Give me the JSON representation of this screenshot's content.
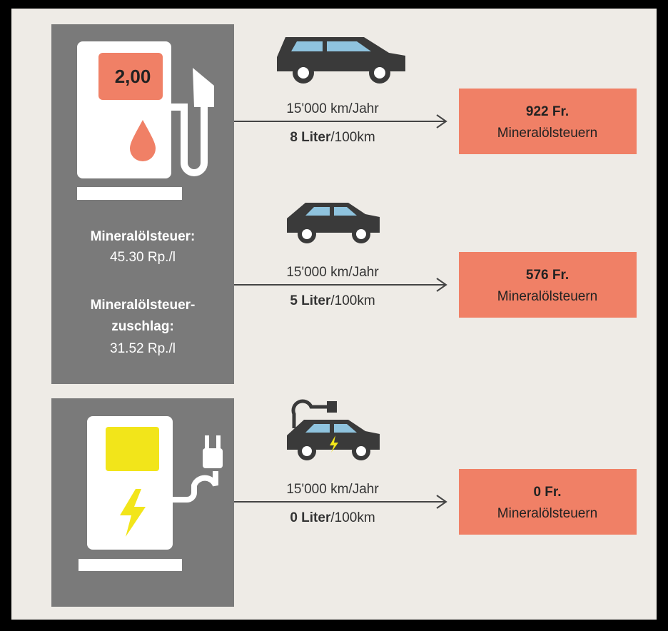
{
  "fuel_panel": {
    "price": "2,00",
    "tax_label": "Mineralölsteuer:",
    "tax_value": "45.30 Rp./l",
    "surcharge_label": [
      "Mineralölsteuer-",
      "zuschlag:"
    ],
    "surcharge_value": "31.52 Rp./l"
  },
  "rows": [
    {
      "distance": "15'000 km/Jahr",
      "consumption": "8 Liter",
      "unit": "/100km",
      "amount": "922 Fr.",
      "result_label": "Mineralölsteuern"
    },
    {
      "distance": "15'000 km/Jahr",
      "consumption": "5 Liter",
      "unit": "/100km",
      "amount": "576 Fr.",
      "result_label": "Mineralölsteuern"
    },
    {
      "distance": "15'000 km/Jahr",
      "consumption": "0 Liter",
      "unit": "/100km",
      "amount": "0 Fr.",
      "result_label": "Mineralölsteuern"
    }
  ]
}
